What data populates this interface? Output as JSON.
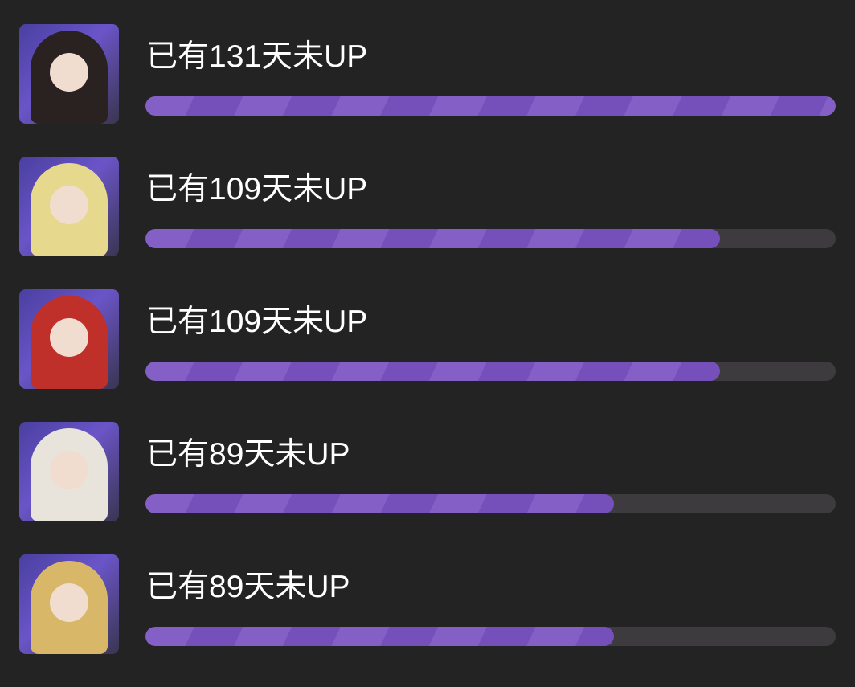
{
  "max_days": 131,
  "colors": {
    "background": "#232323",
    "bar_fill": "#7b57c0",
    "bar_track": "#3d3b3d",
    "text": "#ffffff"
  },
  "items": [
    {
      "label": "已有131天未UP",
      "days": 131,
      "progress": 1.0,
      "avatar": "character-portrait-dark-hair",
      "hair": "#2a2220"
    },
    {
      "label": "已有109天未UP",
      "days": 109,
      "progress": 0.832,
      "avatar": "character-portrait-blonde",
      "hair": "#e6d98e"
    },
    {
      "label": "已有109天未UP",
      "days": 109,
      "progress": 0.832,
      "avatar": "character-portrait-red-hair-wolf",
      "hair": "#c0302a"
    },
    {
      "label": "已有89天未UP",
      "days": 89,
      "progress": 0.679,
      "avatar": "character-portrait-panda",
      "hair": "#e8e4dc"
    },
    {
      "label": "已有89天未UP",
      "days": 89,
      "progress": 0.679,
      "avatar": "character-portrait-blonde-masked",
      "hair": "#d8b868"
    }
  ]
}
